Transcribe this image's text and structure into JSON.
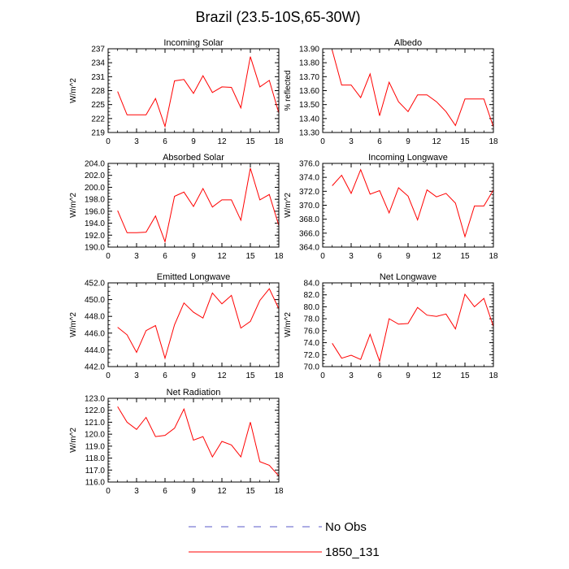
{
  "figure_title": "Brazil (23.5-10S,65-30W)",
  "legend": [
    {
      "label": "No Obs",
      "color": "#5a5ac8",
      "dash": true
    },
    {
      "label": "1850_131",
      "color": "#ff0000",
      "dash": false
    }
  ],
  "chart_data": [
    {
      "type": "line",
      "title": "Incoming Solar",
      "ylabel": "W/m^2",
      "xlim": [
        0,
        18
      ],
      "ylim": [
        219,
        237
      ],
      "xticks": [
        "0",
        "3",
        "6",
        "9",
        "12",
        "15",
        "18"
      ],
      "yticks": [
        "219",
        "222",
        "225",
        "228",
        "231",
        "234",
        "237"
      ],
      "x": [
        1,
        2,
        3,
        4,
        5,
        6,
        7,
        8,
        9,
        10,
        11,
        12,
        13,
        14,
        15,
        16,
        17,
        18
      ],
      "series": [
        {
          "name": "1850_131",
          "color": "#ff0000",
          "values": [
            227.8,
            222.8,
            222.8,
            222.8,
            226.3,
            220.3,
            230.1,
            230.4,
            227.4,
            231.2,
            227.6,
            228.8,
            228.7,
            224.3,
            235.3,
            228.8,
            230.2,
            223.2
          ]
        }
      ]
    },
    {
      "type": "line",
      "title": "Albedo",
      "ylabel": "% reflected",
      "xlim": [
        0,
        18
      ],
      "ylim": [
        13.3,
        13.9
      ],
      "xticks": [
        "0",
        "3",
        "6",
        "9",
        "12",
        "15",
        "18"
      ],
      "yticks": [
        "13.30",
        "13.40",
        "13.50",
        "13.60",
        "13.70",
        "13.80",
        "13.90"
      ],
      "x": [
        1,
        2,
        3,
        4,
        5,
        6,
        7,
        8,
        9,
        10,
        11,
        12,
        13,
        14,
        15,
        16,
        17,
        18
      ],
      "series": [
        {
          "name": "1850_131",
          "color": "#ff0000",
          "values": [
            13.89,
            13.64,
            13.64,
            13.55,
            13.72,
            13.42,
            13.66,
            13.52,
            13.45,
            13.57,
            13.57,
            13.52,
            13.45,
            13.35,
            13.54,
            13.54,
            13.54,
            13.34
          ]
        }
      ]
    },
    {
      "type": "line",
      "title": "Absorbed Solar",
      "ylabel": "W/m^2",
      "xlim": [
        0,
        18
      ],
      "ylim": [
        190.0,
        204.0
      ],
      "xticks": [
        "0",
        "3",
        "6",
        "9",
        "12",
        "15",
        "18"
      ],
      "yticks": [
        "190.0",
        "192.0",
        "194.0",
        "196.0",
        "198.0",
        "200.0",
        "202.0",
        "204.0"
      ],
      "x": [
        1,
        2,
        3,
        4,
        5,
        6,
        7,
        8,
        9,
        10,
        11,
        12,
        13,
        14,
        15,
        16,
        17,
        18
      ],
      "series": [
        {
          "name": "1850_131",
          "color": "#ff0000",
          "values": [
            196.1,
            192.4,
            192.4,
            192.5,
            195.2,
            190.9,
            198.5,
            199.2,
            196.8,
            199.8,
            196.7,
            197.9,
            197.9,
            194.5,
            203.2,
            197.9,
            198.8,
            193.6
          ]
        }
      ]
    },
    {
      "type": "line",
      "title": "Incoming Longwave",
      "ylabel": "W/m^2",
      "xlim": [
        0,
        18
      ],
      "ylim": [
        364.0,
        376.0
      ],
      "xticks": [
        "0",
        "3",
        "6",
        "9",
        "12",
        "15",
        "18"
      ],
      "yticks": [
        "364.0",
        "366.0",
        "368.0",
        "370.0",
        "372.0",
        "374.0",
        "376.0"
      ],
      "x": [
        1,
        2,
        3,
        4,
        5,
        6,
        7,
        8,
        9,
        10,
        11,
        12,
        13,
        14,
        15,
        16,
        17,
        18
      ],
      "series": [
        {
          "name": "1850_131",
          "color": "#ff0000",
          "values": [
            372.8,
            374.3,
            371.7,
            375.1,
            371.6,
            372.1,
            368.9,
            372.5,
            371.3,
            367.9,
            372.2,
            371.2,
            371.7,
            370.3,
            365.5,
            369.9,
            369.9,
            372.2
          ]
        }
      ]
    },
    {
      "type": "line",
      "title": "Emitted Longwave",
      "ylabel": "W/m^2",
      "xlim": [
        0,
        18
      ],
      "ylim": [
        442.0,
        452.0
      ],
      "xticks": [
        "0",
        "3",
        "6",
        "9",
        "12",
        "15",
        "18"
      ],
      "yticks": [
        "442.0",
        "444.0",
        "446.0",
        "448.0",
        "450.0",
        "452.0"
      ],
      "x": [
        1,
        2,
        3,
        4,
        5,
        6,
        7,
        8,
        9,
        10,
        11,
        12,
        13,
        14,
        15,
        16,
        17,
        18
      ],
      "series": [
        {
          "name": "1850_131",
          "color": "#ff0000",
          "values": [
            446.7,
            445.8,
            443.7,
            446.3,
            446.9,
            443.0,
            447.0,
            449.6,
            448.5,
            447.8,
            450.8,
            449.5,
            450.5,
            446.6,
            447.4,
            449.9,
            451.3,
            448.9
          ]
        }
      ]
    },
    {
      "type": "line",
      "title": "Net Longwave",
      "ylabel": "W/m^2",
      "xlim": [
        0,
        18
      ],
      "ylim": [
        70.0,
        84.0
      ],
      "xticks": [
        "0",
        "3",
        "6",
        "9",
        "12",
        "15",
        "18"
      ],
      "yticks": [
        "70.0",
        "72.0",
        "74.0",
        "76.0",
        "78.0",
        "80.0",
        "82.0",
        "84.0"
      ],
      "x": [
        1,
        2,
        3,
        4,
        5,
        6,
        7,
        8,
        9,
        10,
        11,
        12,
        13,
        14,
        15,
        16,
        17,
        18
      ],
      "series": [
        {
          "name": "1850_131",
          "color": "#ff0000",
          "values": [
            73.9,
            71.4,
            71.9,
            71.2,
            75.4,
            70.9,
            78.0,
            77.1,
            77.2,
            79.9,
            78.6,
            78.4,
            78.8,
            76.3,
            82.1,
            80.0,
            81.4,
            76.7
          ]
        }
      ]
    },
    {
      "type": "line",
      "title": "Net Radiation",
      "ylabel": "W/m^2",
      "xlim": [
        0,
        18
      ],
      "ylim": [
        116.0,
        123.0
      ],
      "xticks": [
        "0",
        "3",
        "6",
        "9",
        "12",
        "15",
        "18"
      ],
      "yticks": [
        "116.0",
        "117.0",
        "118.0",
        "119.0",
        "120.0",
        "121.0",
        "122.0",
        "123.0"
      ],
      "x": [
        1,
        2,
        3,
        4,
        5,
        6,
        7,
        8,
        9,
        10,
        11,
        12,
        13,
        14,
        15,
        16,
        17,
        18
      ],
      "series": [
        {
          "name": "1850_131",
          "color": "#ff0000",
          "values": [
            122.3,
            121.0,
            120.4,
            121.4,
            119.8,
            119.9,
            120.5,
            122.1,
            119.5,
            119.8,
            118.1,
            119.4,
            119.1,
            118.1,
            121.0,
            117.7,
            117.4,
            116.5
          ]
        }
      ]
    }
  ]
}
